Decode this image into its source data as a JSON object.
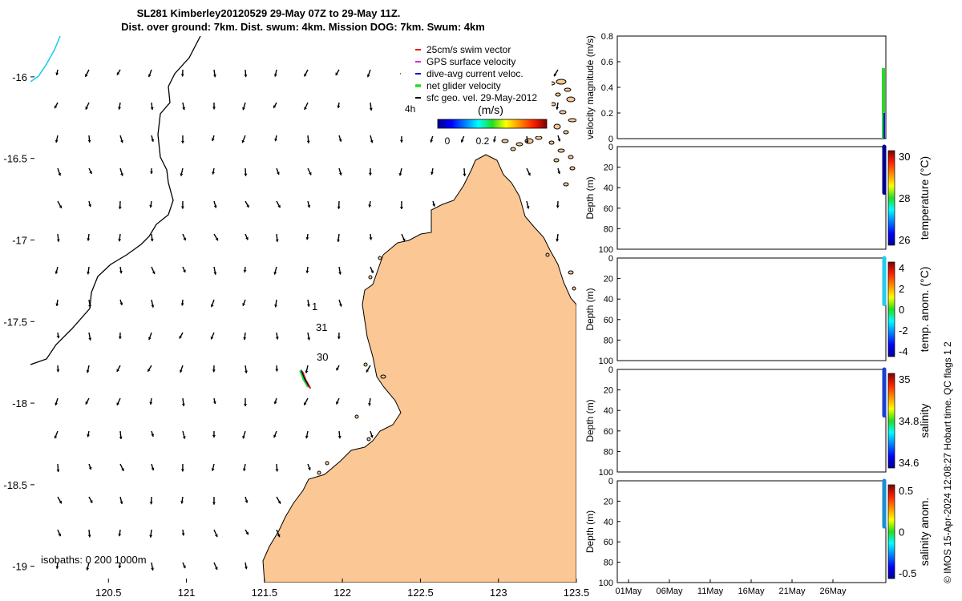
{
  "title": {
    "line1": "SL281 Kimberley20120529 29-May 07Z to 29-May 11Z.",
    "line2": "Dist. over ground: 7km. Dist. swum: 4km. Mission DOG: 7km. Swum: 4km"
  },
  "credit": "© IMOS 15-Apr-2024 12:08:27 Hobart time. QC flags 1  2",
  "colors": {
    "land": "#fac795",
    "red": "#ee1111",
    "magenta": "#dd22dd",
    "blue": "#1111dd",
    "green": "#22dd22",
    "cyan": "#22ccee"
  },
  "chart_data": [
    {
      "type": "map",
      "xlim": [
        120.0,
        123.5
      ],
      "ylim": [
        -19.1,
        -15.75
      ],
      "x_ticks": [
        120.5,
        121,
        121.5,
        122,
        122.5,
        123,
        123.5
      ],
      "x_tick_labels": [
        "120.5",
        "121",
        "121.5",
        "122",
        "122.5",
        "123",
        "123.5"
      ],
      "y_ticks": [
        -16,
        -16.5,
        -17,
        -17.5,
        -18,
        -18.5,
        -19
      ],
      "y_tick_labels": [
        "-16",
        "-16.5",
        "-17",
        "-17.5",
        "-18",
        "-18.5",
        "-19"
      ],
      "legend": {
        "placement": "top-right",
        "entries": [
          {
            "label": "25cm/s swim vector",
            "color": "#ee1111"
          },
          {
            "label": "GPS surface velocity",
            "color": "#dd22dd"
          },
          {
            "label": "dive-avg current veloc.",
            "color": "#1111dd"
          },
          {
            "label": "net glider velocity",
            "color": "#22dd22"
          },
          {
            "label": "sfc geo. vel. 29-May-2012",
            "color": "#000000"
          }
        ],
        "extra": "4h"
      },
      "colorbar": {
        "title": "(m/s)",
        "tick_labels": [
          "0",
          "0.2"
        ]
      },
      "day_labels": [
        "1",
        "31",
        "30"
      ],
      "isobaths_label": "isobaths: 0   200  1000m",
      "glider_track": [
        {
          "lon": 121.73,
          "lat": -17.8
        },
        {
          "lon": 121.75,
          "lat": -17.85
        },
        {
          "lon": 121.78,
          "lat": -17.9
        }
      ]
    },
    {
      "type": "line",
      "ylabel": "velocity magnitude (m/s)",
      "ylim": [
        0,
        0.8
      ],
      "y_ticks": [
        "0",
        "0.2",
        "0.4",
        "0.6",
        "0.8"
      ],
      "bars": [
        {
          "color": "#22dd22",
          "from": 0.0,
          "to": 0.55
        },
        {
          "color": "#1111dd",
          "from": 0.0,
          "to": 0.2
        }
      ]
    },
    {
      "type": "heatmap",
      "ylabel": "Depth (m)",
      "ylim": [
        0,
        100
      ],
      "y_ticks": [
        "0",
        "20",
        "40",
        "60",
        "80",
        "100"
      ],
      "colorbar_label": "temperature (°C)",
      "colorbar_ticks": [
        "30",
        "28",
        "26"
      ],
      "profile_color": "#00008b",
      "profile_depth": [
        0,
        45
      ]
    },
    {
      "type": "heatmap",
      "ylabel": "Depth (m)",
      "ylim": [
        0,
        100
      ],
      "y_ticks": [
        "0",
        "20",
        "40",
        "60",
        "80",
        "100"
      ],
      "colorbar_label": "temp. anom. (°C)",
      "colorbar_ticks": [
        "4",
        "2",
        "0",
        "-2",
        "-4"
      ],
      "profile_color": "#22ccee",
      "profile_depth": [
        0,
        45
      ]
    },
    {
      "type": "heatmap",
      "ylabel": "Depth (m)",
      "ylim": [
        0,
        100
      ],
      "y_ticks": [
        "0",
        "20",
        "40",
        "60",
        "80",
        "100"
      ],
      "colorbar_label": "salinity",
      "colorbar_ticks": [
        "35",
        "34.8",
        "34.6"
      ],
      "profile_color": "#1a3fd0",
      "profile_depth": [
        0,
        45
      ]
    },
    {
      "type": "heatmap",
      "ylabel": "Depth (m)",
      "ylim": [
        0,
        100
      ],
      "y_ticks": [
        "0",
        "20",
        "40",
        "60",
        "80",
        "100"
      ],
      "colorbar_label": "salinity anom.",
      "colorbar_ticks": [
        "0.5",
        "0",
        "-0.5"
      ],
      "profile_color": "#1a8fd0",
      "profile_depth": [
        0,
        45
      ],
      "x_tick_labels": [
        "01May",
        "06May",
        "11May",
        "16May",
        "21May",
        "26May"
      ]
    }
  ]
}
